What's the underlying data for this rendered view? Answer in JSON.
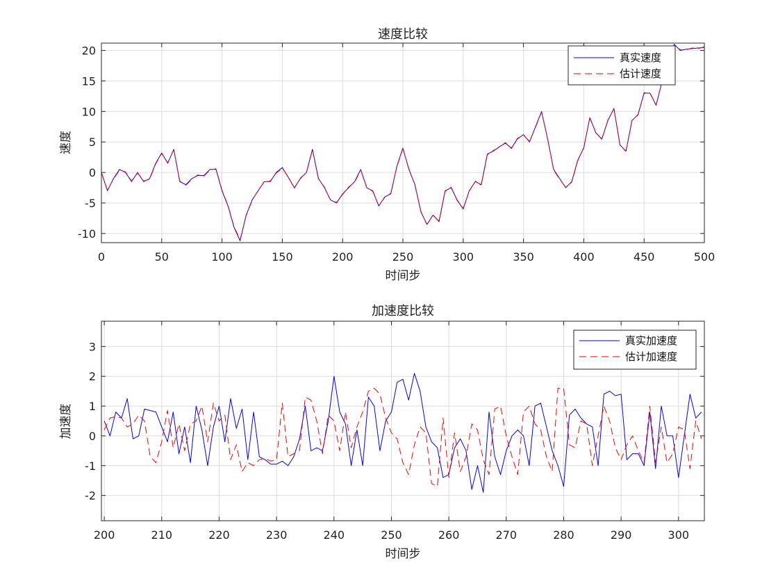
{
  "chart_data": [
    {
      "type": "line",
      "title": "速度比较",
      "xlabel": "时间步",
      "ylabel": "速度",
      "xlim": [
        0,
        500
      ],
      "ylim": [
        -11.5,
        21.2
      ],
      "xticks": [
        0,
        50,
        100,
        150,
        200,
        250,
        300,
        350,
        400,
        450,
        500
      ],
      "yticks": [
        -10,
        -5,
        0,
        5,
        10,
        15,
        20
      ],
      "grid": true,
      "legend_position": "top-right",
      "series": [
        {
          "name": "真实速度",
          "color": "#0000ff",
          "style": "solid",
          "x": [
            0,
            5,
            10,
            15,
            20,
            25,
            30,
            35,
            40,
            45,
            50,
            55,
            60,
            65,
            70,
            75,
            80,
            85,
            90,
            95,
            100,
            105,
            110,
            115,
            120,
            125,
            130,
            135,
            140,
            145,
            150,
            155,
            160,
            165,
            170,
            175,
            180,
            185,
            190,
            195,
            200,
            205,
            210,
            215,
            220,
            225,
            230,
            235,
            240,
            245,
            250,
            255,
            260,
            265,
            270,
            275,
            280,
            285,
            290,
            295,
            300,
            305,
            310,
            315,
            320,
            325,
            330,
            335,
            340,
            345,
            350,
            355,
            360,
            365,
            370,
            375,
            380,
            385,
            390,
            395,
            400,
            405,
            410,
            415,
            420,
            425,
            430,
            435,
            440,
            445,
            450,
            455,
            460,
            465,
            470,
            475,
            480,
            485,
            490,
            495,
            500
          ],
          "y": [
            0,
            -3,
            -1,
            0.5,
            0,
            -1.5,
            0,
            -1.5,
            -1,
            1.5,
            3.2,
            1.5,
            3.8,
            -1.5,
            -2,
            -1,
            -0.5,
            -0.5,
            0.5,
            0.5,
            -3,
            -5.5,
            -9,
            -11.2,
            -7,
            -4.5,
            -3,
            -1.5,
            -1.5,
            0,
            0.8,
            -0.8,
            -2.5,
            -1,
            0,
            3.8,
            -1,
            -2.5,
            -4.5,
            -5,
            -3.5,
            -2.5,
            -1.5,
            0.5,
            -2.5,
            -3,
            -5.5,
            -4,
            -3.5,
            1,
            4,
            0.5,
            -2,
            -6.5,
            -8.5,
            -7,
            -8,
            -3,
            -2.5,
            -4.5,
            -6,
            -3,
            -1.5,
            -2,
            3,
            3.5,
            4.2,
            4.8,
            4,
            5.5,
            6.2,
            5,
            7.5,
            10,
            5.5,
            0.5,
            -1,
            -2.5,
            -1.5,
            2,
            4,
            9,
            6.5,
            5.5,
            8.5,
            10.5,
            4.5,
            3.5,
            8.5,
            9.5,
            13,
            13,
            11,
            15,
            18.2,
            21,
            20,
            20.2,
            20.3,
            20.4,
            20.5
          ]
        },
        {
          "name": "估计速度",
          "color": "#ff0000",
          "style": "dashed",
          "x": [
            0,
            5,
            10,
            15,
            20,
            25,
            30,
            35,
            40,
            45,
            50,
            55,
            60,
            65,
            70,
            75,
            80,
            85,
            90,
            95,
            100,
            105,
            110,
            115,
            120,
            125,
            130,
            135,
            140,
            145,
            150,
            155,
            160,
            165,
            170,
            175,
            180,
            185,
            190,
            195,
            200,
            205,
            210,
            215,
            220,
            225,
            230,
            235,
            240,
            245,
            250,
            255,
            260,
            265,
            270,
            275,
            280,
            285,
            290,
            295,
            300,
            305,
            310,
            315,
            320,
            325,
            330,
            335,
            340,
            345,
            350,
            355,
            360,
            365,
            370,
            375,
            380,
            385,
            390,
            395,
            400,
            405,
            410,
            415,
            420,
            425,
            430,
            435,
            440,
            445,
            450,
            455,
            460,
            465,
            470,
            475,
            480,
            485,
            490,
            495,
            500
          ],
          "y": [
            0,
            -2.9,
            -1.1,
            0.4,
            0.1,
            -1.4,
            -0.1,
            -1.4,
            -1.1,
            1.4,
            3.1,
            1.6,
            3.7,
            -1.4,
            -2.1,
            -1.1,
            -0.4,
            -0.6,
            0.4,
            0.6,
            -2.9,
            -5.4,
            -8.9,
            -11,
            -7.1,
            -4.6,
            -2.9,
            -1.6,
            -1.4,
            -0.1,
            0.7,
            -0.7,
            -2.6,
            -0.9,
            -0.1,
            3.7,
            -1.1,
            -2.4,
            -4.6,
            -4.9,
            -3.6,
            -2.4,
            -1.6,
            0.4,
            -2.4,
            -3.1,
            -5.4,
            -4.1,
            -3.4,
            0.9,
            3.9,
            0.6,
            -2.1,
            -6.4,
            -8.6,
            -6.9,
            -8.1,
            -3.1,
            -2.4,
            -4.6,
            -5.9,
            -3.1,
            -1.4,
            -2.1,
            2.9,
            3.6,
            4.1,
            4.9,
            3.9,
            5.6,
            6.1,
            5.1,
            7.4,
            9.9,
            5.6,
            0.4,
            -1.1,
            -2.4,
            -1.6,
            1.9,
            4.1,
            8.9,
            6.6,
            5.4,
            8.6,
            10.4,
            4.6,
            3.4,
            8.6,
            9.4,
            13.1,
            12.9,
            11.1,
            14.9,
            18.1,
            20.9,
            20.1,
            20.1,
            20.4,
            20.3,
            20.6
          ]
        }
      ]
    },
    {
      "type": "line",
      "title": "加速度比较",
      "xlabel": "时间步",
      "ylabel": "加速度",
      "xlim": [
        199.5,
        304.5
      ],
      "ylim": [
        -2.85,
        3.85
      ],
      "xticks": [
        200,
        210,
        220,
        230,
        240,
        250,
        260,
        270,
        280,
        290,
        300
      ],
      "yticks": [
        -2,
        -1,
        0,
        1,
        2,
        3
      ],
      "grid": true,
      "legend_position": "top-right",
      "series": [
        {
          "name": "真实加速度",
          "color": "#0000ff",
          "style": "solid",
          "x": [
            200,
            201,
            202,
            203,
            204,
            205,
            206,
            207,
            208,
            209,
            210,
            211,
            212,
            213,
            214,
            215,
            216,
            217,
            218,
            219,
            220,
            221,
            222,
            223,
            224,
            225,
            226,
            227,
            228,
            229,
            230,
            231,
            232,
            233,
            234,
            235,
            236,
            237,
            238,
            239,
            240,
            241,
            242,
            243,
            244,
            245,
            246,
            247,
            248,
            249,
            250,
            251,
            252,
            253,
            254,
            255,
            256,
            257,
            258,
            259,
            260,
            261,
            262,
            263,
            264,
            265,
            266,
            267,
            268,
            269,
            270,
            271,
            272,
            273,
            274,
            275,
            276,
            277,
            278,
            279,
            280,
            281,
            282,
            283,
            284,
            285,
            286,
            287,
            288,
            289,
            290,
            291,
            292,
            293,
            294,
            295,
            296,
            297,
            298,
            299,
            300,
            301,
            302,
            303,
            304
          ],
          "y": [
            0.5,
            0,
            0.8,
            0.6,
            1.25,
            -0.1,
            0,
            0.9,
            0.85,
            0.8,
            0.3,
            -0.2,
            0.8,
            -0.6,
            0.3,
            -0.9,
            1,
            0.2,
            -1,
            0.3,
            1,
            -0.2,
            1.25,
            0.25,
            0.9,
            -0.8,
            0.8,
            -0.7,
            -0.8,
            -0.95,
            -0.95,
            -0.85,
            -1,
            -0.7,
            -0.1,
            1,
            -0.5,
            -0.4,
            -0.5,
            0.5,
            2,
            0.8,
            0.4,
            -1,
            0.2,
            -1,
            1.3,
            1,
            -0.5,
            0.5,
            0.8,
            1.8,
            1.9,
            1.2,
            2.1,
            1.5,
            0.3,
            -0.2,
            -0.4,
            -1.4,
            -1.3,
            -0.4,
            -0.1,
            -0.5,
            -1.8,
            -1,
            -1.9,
            0.8,
            -0.7,
            -1.3,
            -0.5,
            0,
            0.2,
            0,
            -1,
            1,
            1.1,
            0.3,
            -0.5,
            -1,
            -1.7,
            0.7,
            0.9,
            0.6,
            0.4,
            0.3,
            -1,
            1.4,
            1.5,
            1.35,
            1.4,
            -0.8,
            -0.6,
            -0.6,
            -1,
            0.8,
            -1.1,
            1,
            0,
            0,
            -1.4,
            0,
            1.4,
            0.6,
            0.8
          ]
        },
        {
          "name": "估计加速度",
          "color": "#ff0000",
          "style": "dashed",
          "x": [
            200,
            201,
            202,
            203,
            204,
            205,
            206,
            207,
            208,
            209,
            210,
            211,
            212,
            213,
            214,
            215,
            216,
            217,
            218,
            219,
            220,
            221,
            222,
            223,
            224,
            225,
            226,
            227,
            228,
            229,
            230,
            231,
            232,
            233,
            234,
            235,
            236,
            237,
            238,
            239,
            240,
            241,
            242,
            243,
            244,
            245,
            246,
            247,
            248,
            249,
            250,
            251,
            252,
            253,
            254,
            255,
            256,
            257,
            258,
            259,
            260,
            261,
            262,
            263,
            264,
            265,
            266,
            267,
            268,
            269,
            270,
            271,
            272,
            273,
            274,
            275,
            276,
            277,
            278,
            279,
            280,
            281,
            282,
            283,
            284,
            285,
            286,
            287,
            288,
            289,
            290,
            291,
            292,
            293,
            294,
            295,
            296,
            297,
            298,
            299,
            300,
            301,
            302,
            303,
            304
          ],
          "y": [
            0.2,
            0.6,
            0.65,
            0.6,
            0.3,
            0.4,
            0.7,
            0.5,
            -0.7,
            -0.9,
            -0.2,
            0.85,
            -0.4,
            0.4,
            -0.5,
            0.4,
            0.5,
            1,
            -0.2,
            1.1,
            0.5,
            0.7,
            -0.8,
            -0.3,
            -1.2,
            -0.9,
            -1,
            -0.8,
            -0.75,
            -0.85,
            -0.8,
            1.1,
            -0.7,
            -0.6,
            -0.5,
            1.3,
            1.2,
            0.5,
            -0.6,
            0.7,
            0.5,
            -0.5,
            0.8,
            -0.4,
            0.3,
            0.8,
            1.5,
            1.6,
            1.4,
            0.6,
            0.1,
            -0.1,
            -0.9,
            -1.3,
            -0.3,
            0.3,
            0.1,
            -1.6,
            -1.7,
            0.6,
            -1.4,
            0.1,
            -1.2,
            -0.7,
            0.4,
            0.2,
            -0.8,
            -1.3,
            0.9,
            1,
            0,
            -0.7,
            -1.3,
            0.8,
            1,
            0.4,
            0.2,
            -0.7,
            -1.2,
            1.6,
            1.6,
            -0.3,
            -0.4,
            0.5,
            0.4,
            -1,
            0,
            1,
            0.5,
            -0.4,
            -0.8,
            -0.3,
            0,
            -0.5,
            -0.9,
            1,
            -0.9,
            0.3,
            -0.9,
            -0.6,
            0.3,
            0.2,
            -1.1,
            0.5,
            -0.1
          ]
        }
      ]
    }
  ]
}
